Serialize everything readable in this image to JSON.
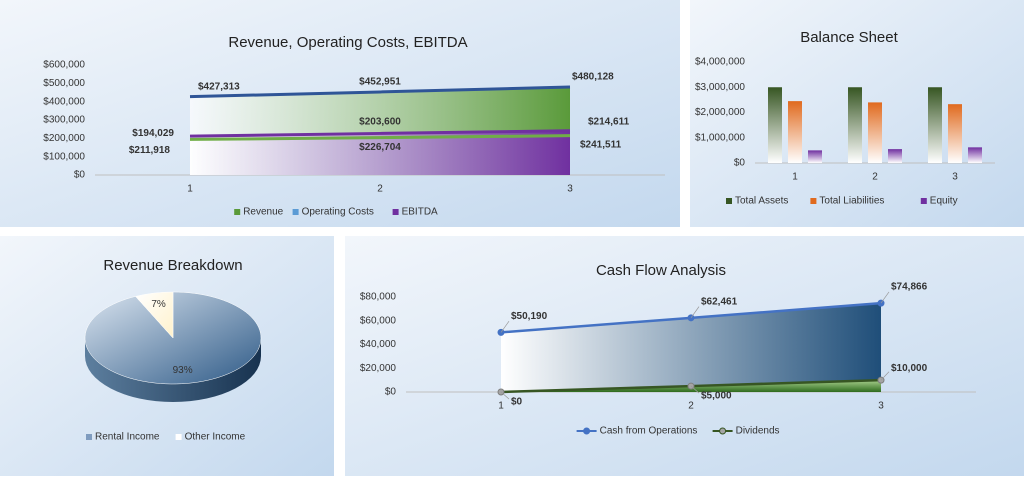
{
  "chart_data": [
    {
      "type": "area",
      "title": "Revenue, Operating Costs, EBITDA",
      "categories": [
        "1",
        "2",
        "3"
      ],
      "series": [
        {
          "name": "Revenue",
          "color": "#5a9a3a",
          "values": [
            427313,
            452951,
            480128
          ],
          "value_labels": [
            "$427,313",
            "$452,951",
            "$480,128"
          ]
        },
        {
          "name": "Operating Costs",
          "color": "#5b9bd5",
          "values": [
            194029,
            203600,
            214611
          ],
          "value_labels": [
            "$194,029",
            "$203,600",
            "$214,611"
          ]
        },
        {
          "name": "EBITDA",
          "color": "#7030a0",
          "values": [
            211918,
            226704,
            241511
          ],
          "value_labels": [
            "$211,918",
            "$226,704",
            "$241,511"
          ]
        }
      ],
      "ylim": [
        0,
        600000
      ],
      "yticks": [
        {
          "value": 0,
          "label": "$0"
        },
        {
          "value": 100000,
          "label": "$100,000"
        },
        {
          "value": 200000,
          "label": "$200,000"
        },
        {
          "value": 300000,
          "label": "$300,000"
        },
        {
          "value": 400000,
          "label": "$400,000"
        },
        {
          "value": 500000,
          "label": "$500,000"
        },
        {
          "value": 600000,
          "label": "$600,000"
        }
      ]
    },
    {
      "type": "bar",
      "title": "Balance Sheet",
      "categories": [
        "1",
        "2",
        "3"
      ],
      "series": [
        {
          "name": "Total Assets",
          "color": "#375623",
          "values": [
            3000000,
            3000000,
            3000000
          ]
        },
        {
          "name": "Total Liabilities",
          "color": "#e06a1e",
          "values": [
            2450000,
            2400000,
            2330000
          ]
        },
        {
          "name": "Equity",
          "color": "#7030a0",
          "values": [
            500000,
            550000,
            620000
          ]
        }
      ],
      "ylim": [
        0,
        4000000
      ],
      "yticks": [
        {
          "value": 0,
          "label": "$0"
        },
        {
          "value": 1000000,
          "label": "$1,000,000"
        },
        {
          "value": 2000000,
          "label": "$2,000,000"
        },
        {
          "value": 3000000,
          "label": "$3,000,000"
        },
        {
          "value": 4000000,
          "label": "$4,000,000"
        }
      ]
    },
    {
      "type": "pie",
      "title": "Revenue Breakdown",
      "categories": [
        "Rental Income",
        "Other Income"
      ],
      "values": [
        93,
        7
      ],
      "value_labels": [
        "93%",
        "7%"
      ],
      "colors": [
        "#2e5a87",
        "#fff2cc"
      ]
    },
    {
      "type": "line",
      "title": "Cash Flow Analysis",
      "categories": [
        "1",
        "2",
        "3"
      ],
      "series": [
        {
          "name": "Cash from Operations",
          "color": "#4472c4",
          "values": [
            50190,
            62461,
            74866
          ],
          "value_labels": [
            "$50,190",
            "$62,461",
            "$74,866"
          ]
        },
        {
          "name": "Dividends",
          "color": "#375623",
          "values": [
            0,
            5000,
            10000
          ],
          "value_labels": [
            "$0",
            "$5,000",
            "$10,000"
          ]
        }
      ],
      "ylim": [
        0,
        80000
      ],
      "yticks": [
        {
          "value": 0,
          "label": "$0"
        },
        {
          "value": 20000,
          "label": "$20,000"
        },
        {
          "value": 40000,
          "label": "$40,000"
        },
        {
          "value": 60000,
          "label": "$60,000"
        },
        {
          "value": 80000,
          "label": "$80,000"
        }
      ]
    }
  ]
}
